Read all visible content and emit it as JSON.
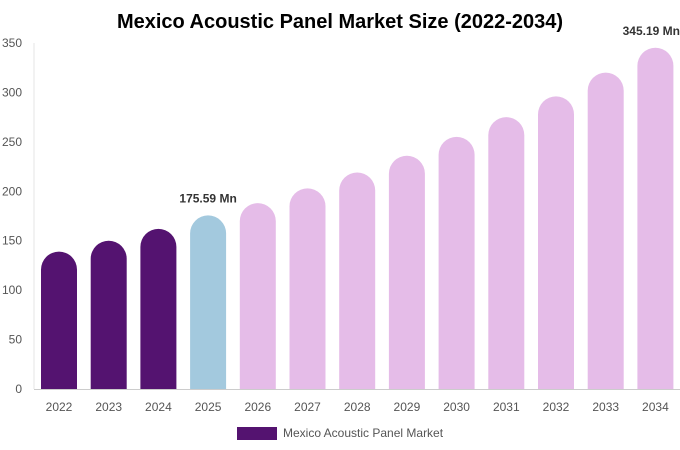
{
  "chart_data": {
    "type": "bar",
    "title": "Mexico Acoustic Panel Market Size (2022-2034)",
    "categories": [
      "2022",
      "2023",
      "2024",
      "2025",
      "2026",
      "2027",
      "2028",
      "2029",
      "2030",
      "2031",
      "2032",
      "2033",
      "2034"
    ],
    "series": [
      {
        "name": "Mexico Acoustic Panel Market",
        "values": [
          139,
          150,
          162,
          175.59,
          188,
          203,
          219,
          236,
          255,
          275,
          296,
          320,
          345.19
        ]
      }
    ],
    "ylim": [
      0,
      350
    ],
    "yticks": [
      0,
      50,
      100,
      150,
      200,
      250,
      300,
      350
    ],
    "data_labels": [
      {
        "category": "2025",
        "text": "175.59 Mn"
      },
      {
        "category": "2034",
        "text": "345.19 Mn"
      }
    ],
    "colors": {
      "historical": "#541370",
      "current": "#a3c9de",
      "forecast": "#e5bce8"
    },
    "bar_color_roles": [
      "historical",
      "historical",
      "historical",
      "current",
      "forecast",
      "forecast",
      "forecast",
      "forecast",
      "forecast",
      "forecast",
      "forecast",
      "forecast",
      "forecast"
    ],
    "grid": false,
    "legend_position": "bottom"
  }
}
